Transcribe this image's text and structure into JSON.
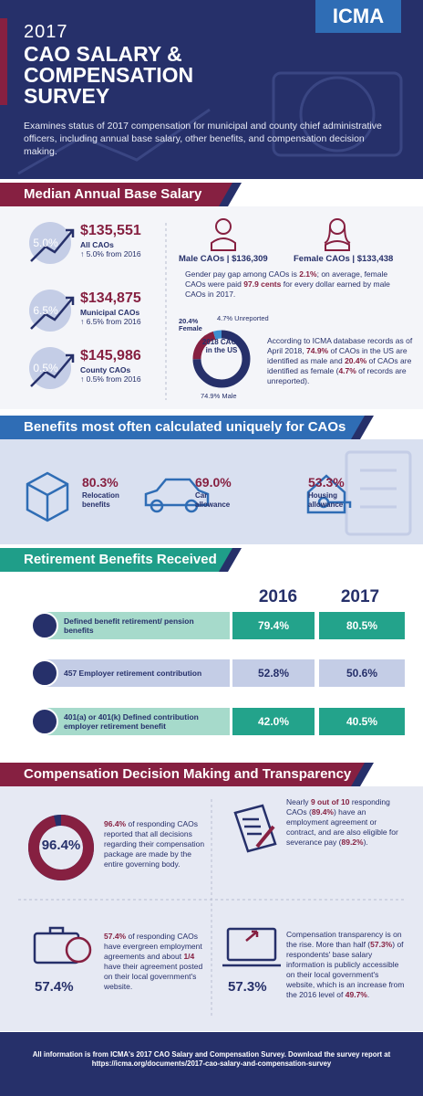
{
  "header": {
    "year": "2017",
    "title_lines": [
      "CAO SALARY &",
      "COMPENSATION",
      "SURVEY"
    ],
    "logo": "ICMA",
    "intro": "Examines status of 2017 compensation for municipal and county chief administrative officers, including annual base salary, other benefits, and compensation decision making."
  },
  "salary": {
    "heading": "Median Annual Base Salary",
    "items": [
      {
        "badge": "5.0%",
        "amount": "$135,551",
        "label": "All CAOs",
        "change": "↑ 5.0% from 2016"
      },
      {
        "badge": "6.5%",
        "amount": "$134,875",
        "label": "Municipal CAOs",
        "change": "↑ 6.5% from 2016"
      },
      {
        "badge": "0.5%",
        "amount": "$145,986",
        "label": "County CAOs",
        "change": "↑ 0.5% from 2016"
      }
    ],
    "male": "Male CAOs | $136,309",
    "female": "Female CAOs | $133,438",
    "gap_text": [
      "Gender pay gap among CAOs is ",
      "2.1%",
      "; on average, female CAOs were paid ",
      "97.9 cents",
      " for every dollar earned by male CAOs in 2017."
    ],
    "donut": {
      "center": "2018 CAOs in the US",
      "segments": [
        {
          "value": 74.9,
          "label": "74.9% Male",
          "color": "#26306a"
        },
        {
          "value": 20.4,
          "label": "20.4% Female",
          "color": "#862041"
        },
        {
          "value": 4.7,
          "label": "4.7% Unreported",
          "color": "#3e8fd0"
        }
      ]
    },
    "records_text": [
      "According to ICMA database records as of April 2018, ",
      "74.9%",
      " of CAOs in the US are identified as male and ",
      "20.4%",
      " of CAOs are identified as female (",
      "4.7%",
      " of records are unreported)."
    ]
  },
  "benefits": {
    "heading": "Benefits most often calculated uniquely for CAOs",
    "items": [
      {
        "value": "80.3%",
        "label": "Relocation benefits"
      },
      {
        "value": "69.0%",
        "label": "Car allowance"
      },
      {
        "value": "53.3%",
        "label": "Housing allowance"
      }
    ]
  },
  "retirement": {
    "heading": "Retirement Benefits Received",
    "columns": [
      "2016",
      "2017"
    ],
    "rows": [
      [
        "Defined benefit retirement/ pension benefits",
        "79.4%",
        "80.5%"
      ],
      [
        "457 Employer retirement contribution",
        "52.8%",
        "50.6%"
      ],
      [
        "401(a) or 401(k) Defined contribution employer retirement benefit",
        "42.0%",
        "40.5%"
      ]
    ]
  },
  "compensation": {
    "heading": "Compensation Decision Making and Transparency",
    "items": [
      {
        "big": "96.4%",
        "ring": 96.4,
        "text": [
          "",
          "96.4%",
          " of responding CAOs reported that all decisions regarding their compensation package are made by the entire governing body."
        ]
      },
      {
        "text": [
          "Nearly ",
          "9 out of 10",
          " responding CAOs (",
          "89.4%",
          ") have an employment agreement or contract, and are also eligible for severance pay (",
          "89.2%",
          "). "
        ]
      },
      {
        "big": "57.4%",
        "text": [
          "",
          "57.4%",
          " of responding CAOs have evergreen employment agreements and about ",
          "1/4",
          " have their agreement posted on their local government's website."
        ]
      },
      {
        "big": "57.3%",
        "text": [
          "Compensation transparency is on the rise. More than half (",
          "57.3%",
          ") of respondents' base salary information is publicly accessible on their local government's website, which is an increase from the 2016 level of ",
          "49.7%",
          "."
        ]
      }
    ]
  },
  "footer": {
    "line1": "All information is from ICMA's 2017 CAO Salary and Compensation Survey. Download the survey report at",
    "line2": "https://icma.org/documents/2017-cao-salary-and-compensation-survey"
  }
}
